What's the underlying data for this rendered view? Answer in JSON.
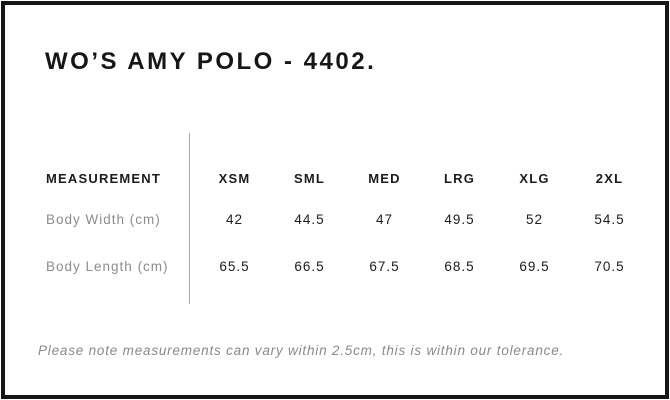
{
  "chart_data": {
    "type": "table",
    "title": "WO’S AMY POLO - 4402.",
    "columns": [
      "MEASUREMENT",
      "XSM",
      "SML",
      "MED",
      "LRG",
      "XLG",
      "2XL"
    ],
    "rows": [
      [
        "Body Width (cm)",
        42,
        44.5,
        47,
        49.5,
        52,
        54.5
      ],
      [
        "Body Length (cm)",
        65.5,
        66.5,
        67.5,
        68.5,
        69.5,
        70.5
      ]
    ],
    "note": "Please note measurements can vary within 2.5cm, this is within our tolerance.",
    "layout": {
      "grid": "off",
      "divider_between_labels_and_values": true
    }
  },
  "colors": {
    "frame_border": "#151515",
    "text_primary": "#1c1c1c",
    "text_muted": "#8c8c8c",
    "divider": "#a9a9a9",
    "background": "#ffffff"
  }
}
